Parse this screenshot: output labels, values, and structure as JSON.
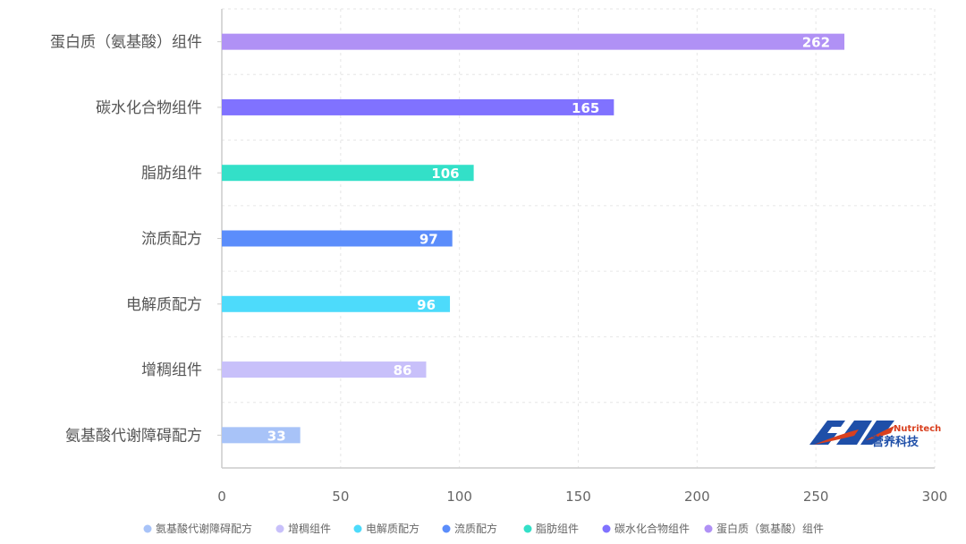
{
  "chart_data": {
    "type": "bar",
    "orientation": "horizontal",
    "categories": [
      "蛋白质（氨基酸）组件",
      "碳水化合物组件",
      "脂肪组件",
      "流质配方",
      "电解质配方",
      "增稠组件",
      "氨基酸代谢障碍配方"
    ],
    "values": [
      262,
      165,
      106,
      97,
      96,
      86,
      33
    ],
    "colors": [
      "#B091F5",
      "#8072FF",
      "#33E0C8",
      "#5B8DFB",
      "#4DDBFB",
      "#C8C0FA",
      "#A8C3F8"
    ],
    "xlim": [
      0,
      300
    ],
    "xticks": [
      0,
      50,
      100,
      150,
      200,
      250,
      300
    ],
    "grid": true,
    "legend_position": "bottom",
    "legend": [
      "氨基酸代谢障碍配方",
      "增稠组件",
      "电解质配方",
      "流质配方",
      "脂肪组件",
      "碳水化合物组件",
      "蛋白质（氨基酸）组件"
    ],
    "legend_colors": [
      "#A8C3F8",
      "#C8C0FA",
      "#4DDBFB",
      "#5B8DFB",
      "#33E0C8",
      "#8072FF",
      "#B091F5"
    ]
  },
  "logo": {
    "text_en": "Nutritech",
    "text_cn": "营养科技",
    "mark": "FMS"
  }
}
